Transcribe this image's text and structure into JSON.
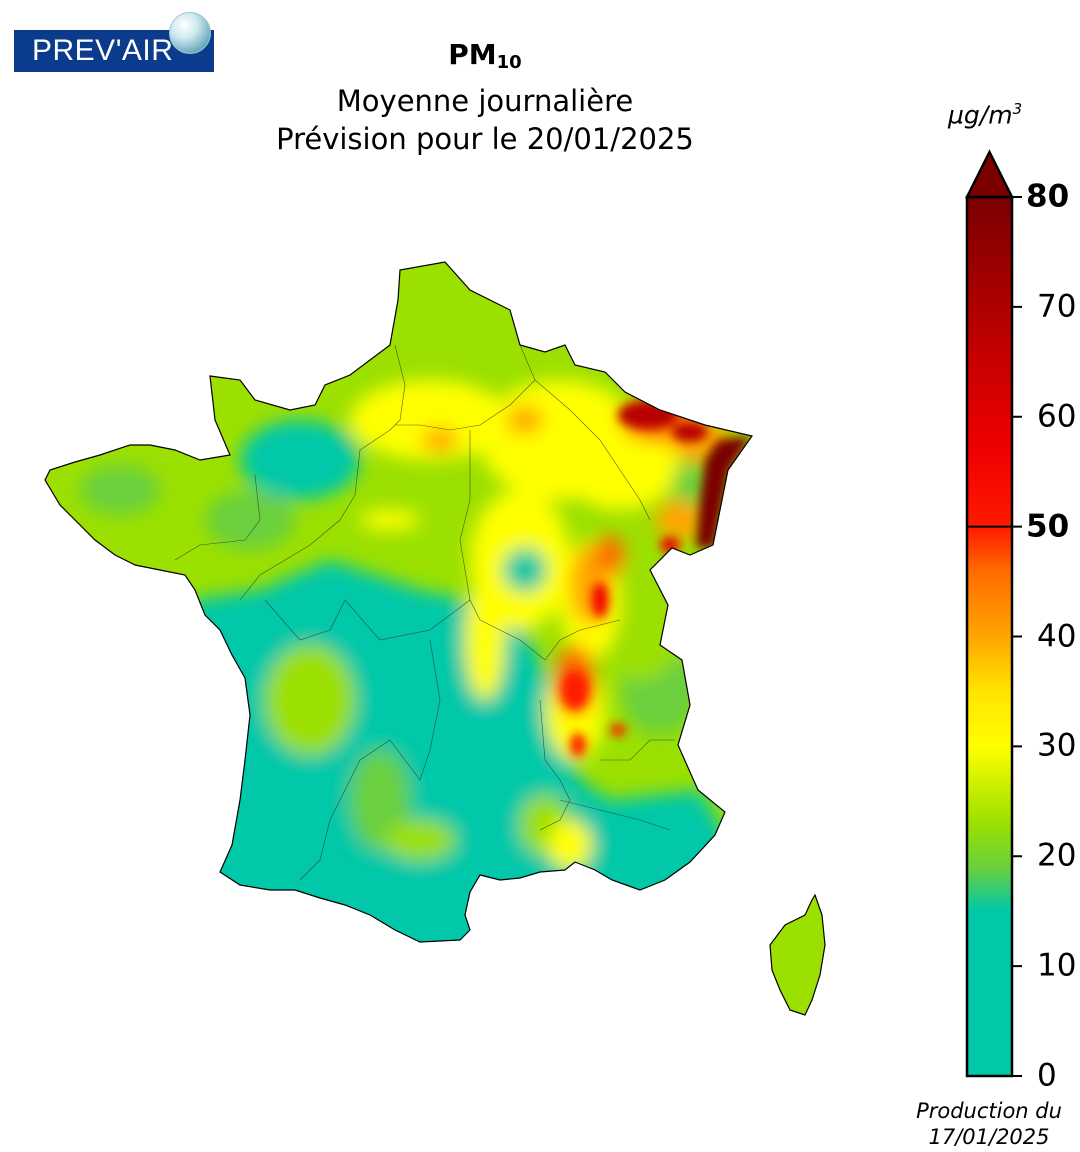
{
  "logo": {
    "text": "PREV'AIR"
  },
  "header": {
    "pollutant": "PM",
    "pollutant_subscript": "10",
    "subtitle": "Moyenne journalière",
    "forecast_line": "Prévision pour le 20/01/2025"
  },
  "colorbar": {
    "unit_main": "µg/m",
    "unit_exp": "3",
    "min": 0,
    "max": 80,
    "extend": "max",
    "threshold": 50,
    "ticks": [
      {
        "value": 0,
        "label": "0",
        "bold": false
      },
      {
        "value": 10,
        "label": "10",
        "bold": false
      },
      {
        "value": 20,
        "label": "20",
        "bold": false
      },
      {
        "value": 30,
        "label": "30",
        "bold": false
      },
      {
        "value": 40,
        "label": "40",
        "bold": false
      },
      {
        "value": 50,
        "label": "50",
        "bold": true
      },
      {
        "value": 60,
        "label": "60",
        "bold": false
      },
      {
        "value": 70,
        "label": "70",
        "bold": false
      },
      {
        "value": 80,
        "label": "80",
        "bold": true
      }
    ],
    "color_stops": [
      {
        "value": 0,
        "color": "#00c8a8"
      },
      {
        "value": 15,
        "color": "#00c8a8"
      },
      {
        "value": 19,
        "color": "#6ad03c"
      },
      {
        "value": 23,
        "color": "#9be000"
      },
      {
        "value": 30,
        "color": "#ffff00"
      },
      {
        "value": 35,
        "color": "#ffe400"
      },
      {
        "value": 40,
        "color": "#ffa500"
      },
      {
        "value": 46,
        "color": "#ff6a00"
      },
      {
        "value": 50,
        "color": "#ff1a00"
      },
      {
        "value": 57,
        "color": "#f00000"
      },
      {
        "value": 68,
        "color": "#b80000"
      },
      {
        "value": 80,
        "color": "#7a0000"
      }
    ]
  },
  "footer": {
    "production_line1": "Production du",
    "production_line2": "17/01/2025"
  }
}
